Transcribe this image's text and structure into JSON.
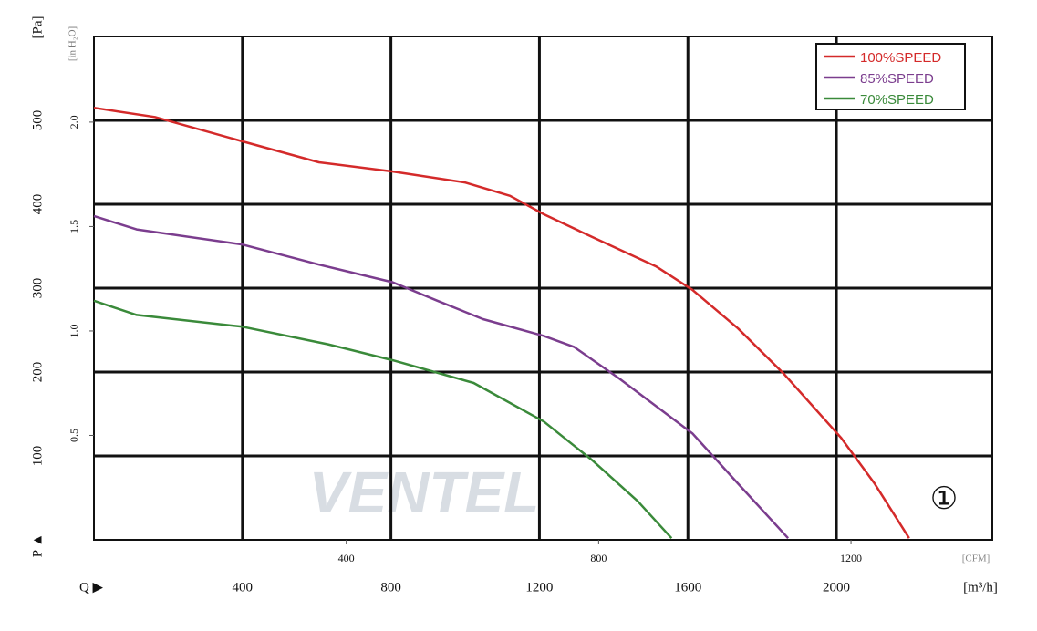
{
  "chart_data": {
    "type": "line",
    "y_label": "[Pa]",
    "y2_label": "[in H₂O]",
    "y_axis_symbol": "P ▲",
    "x_axis_symbol": "Q ▶",
    "x_label": "[m³/h]",
    "x2_label": "[CFM]",
    "annotation": "①",
    "watermark": "VENTEL",
    "xlim": [
      0,
      2420
    ],
    "xticks": [
      400,
      800,
      1200,
      1600,
      2000
    ],
    "x2lim": [
      0,
      1424
    ],
    "x2ticks": [
      400,
      800,
      1200
    ],
    "ylim": [
      0,
      600
    ],
    "yticks": [
      100,
      200,
      300,
      400,
      500
    ],
    "y2lim": [
      0,
      2.41
    ],
    "y2ticks": [
      0.5,
      {
        "value": 1.0,
        "label": "1.0"
      },
      1.5,
      {
        "value": 2.0,
        "label": "2.0"
      }
    ],
    "grid": true,
    "legend": "top-right",
    "series": [
      {
        "name": "100%SPEED",
        "color": "#d42a2a",
        "x": [
          0,
          164,
          400,
          606,
          805,
          999,
          1121,
          1212,
          1342,
          1514,
          1612,
          1735,
          1858,
          2012,
          2103,
          2196
        ],
        "values": [
          515,
          504,
          475,
          450,
          439,
          426,
          410,
          388,
          361,
          326,
          298,
          252,
          198,
          122,
          67,
          2
        ]
      },
      {
        "name": "85%SPEED",
        "color": "#7b3d8e",
        "x": [
          0,
          115,
          400,
          606,
          805,
          925,
          1048,
          1212,
          1293,
          1416,
          1612,
          1735,
          1870
        ],
        "values": [
          386,
          370,
          352,
          328,
          307,
          285,
          263,
          243,
          230,
          192,
          127,
          67,
          2
        ]
      },
      {
        "name": "70%SPEED",
        "color": "#3a8a3a",
        "x": [
          0,
          115,
          400,
          631,
          805,
          1023,
          1212,
          1342,
          1465,
          1556
        ],
        "values": [
          285,
          268,
          254,
          233,
          214,
          187,
          141,
          95,
          46,
          2
        ]
      }
    ]
  }
}
